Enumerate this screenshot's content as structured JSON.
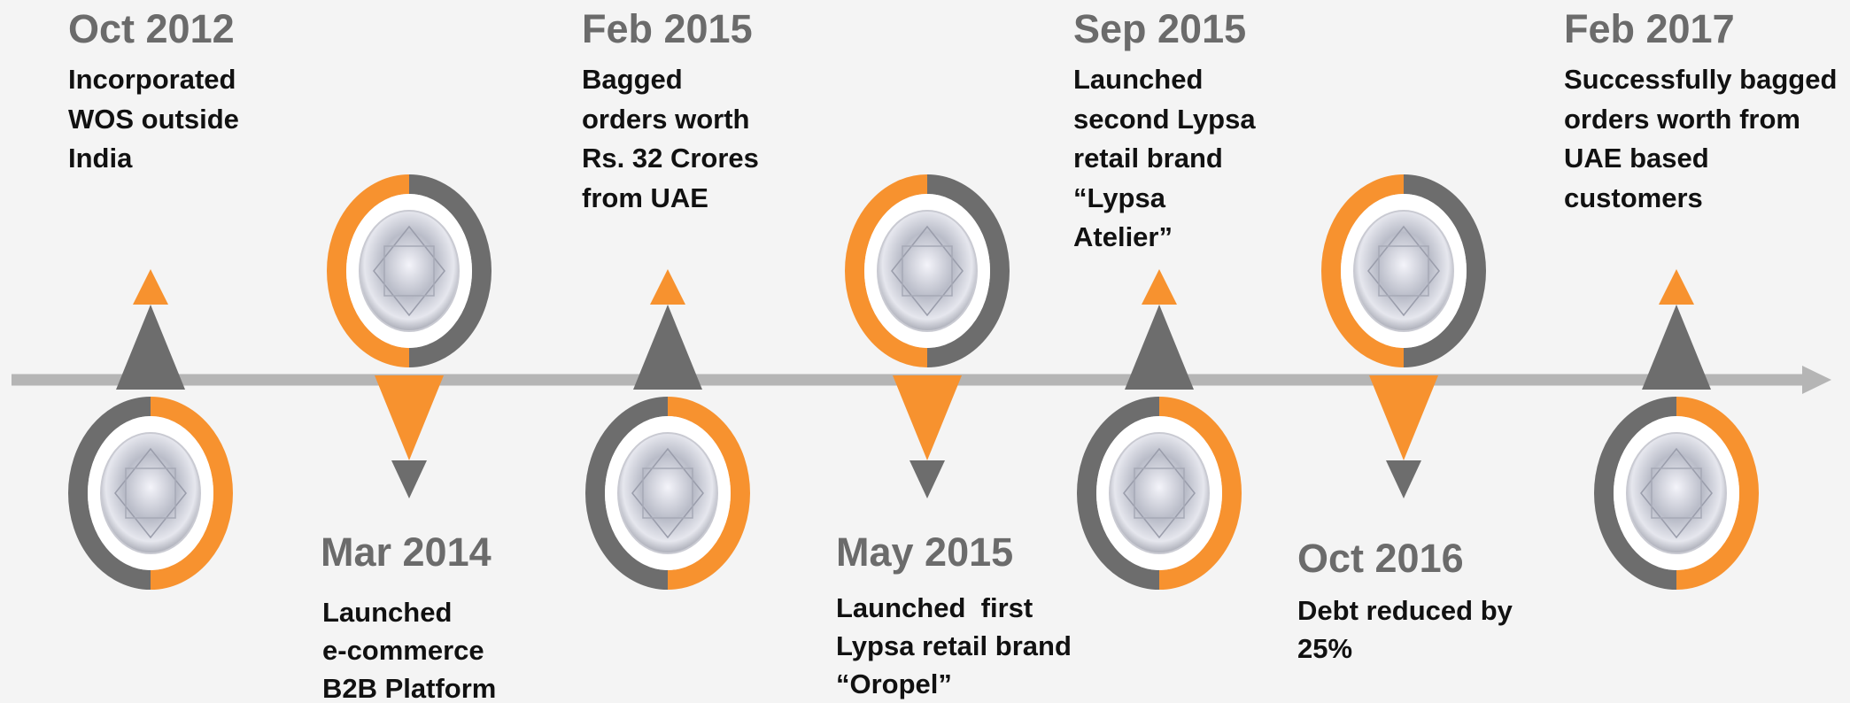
{
  "events": [
    {
      "date": "Oct 2012",
      "lines": [
        "Incorporated",
        "WOS outside",
        "India"
      ]
    },
    {
      "date": "Mar 2014",
      "lines": [
        "Launched",
        "e-commerce",
        "B2B Platform"
      ]
    },
    {
      "date": "Feb 2015",
      "lines": [
        "Bagged",
        "orders worth",
        "Rs. 32 Crores",
        "from UAE"
      ]
    },
    {
      "date": "May 2015",
      "lines": [
        "Launched  first",
        "Lypsa retail brand",
        "“Oropel”"
      ]
    },
    {
      "date": "Sep 2015",
      "lines": [
        "Launched",
        "second Lypsa",
        "retail brand",
        "“Lypsa",
        "Atelier”"
      ]
    },
    {
      "date": "Oct 2016",
      "lines": [
        "Debt reduced by",
        "25%"
      ]
    },
    {
      "date": "Feb 2017",
      "lines": [
        "Successfully bagged",
        "orders worth from",
        "UAE based",
        "customers"
      ]
    }
  ]
}
